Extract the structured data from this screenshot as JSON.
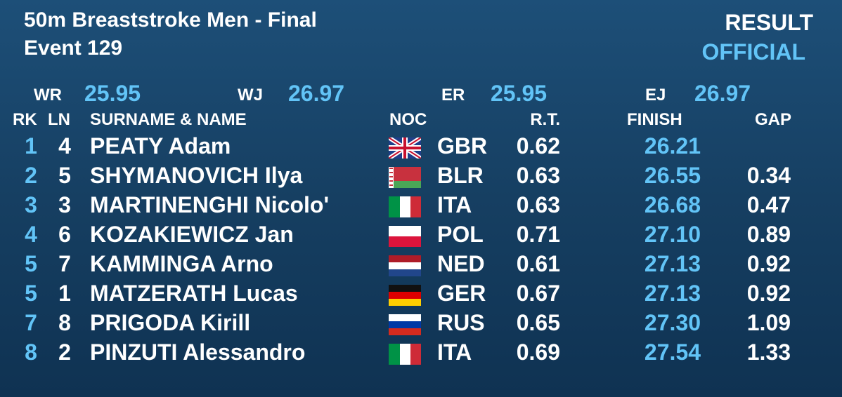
{
  "header": {
    "title": "50m Breaststroke Men - Final",
    "event": "Event 129",
    "status": "RESULT",
    "state": "OFFICIAL"
  },
  "records": [
    {
      "label": "WR",
      "time": "25.95"
    },
    {
      "label": "WJ",
      "time": "26.97"
    },
    {
      "label": "ER",
      "time": "25.95"
    },
    {
      "label": "EJ",
      "time": "26.97"
    }
  ],
  "columns": {
    "rank": "RK",
    "lane": "LN",
    "name": "SURNAME & NAME",
    "noc": "NOC",
    "rt": "R.T.",
    "finish": "FINISH",
    "gap": "GAP"
  },
  "rows": [
    {
      "rank": "1",
      "lane": "4",
      "name": "PEATY Adam",
      "noc": "GBR",
      "rt": "0.62",
      "finish": "26.21"
    },
    {
      "rank": "2",
      "lane": "5",
      "name": "SHYMANOVICH Ilya",
      "noc": "BLR",
      "rt": "0.63",
      "finish": "26.55",
      "gap": "0.34"
    },
    {
      "rank": "3",
      "lane": "3",
      "name": "MARTINENGHI Nicolo'",
      "noc": "ITA",
      "rt": "0.63",
      "finish": "26.68",
      "gap": "0.47"
    },
    {
      "rank": "4",
      "lane": "6",
      "name": "KOZAKIEWICZ Jan",
      "noc": "POL",
      "rt": "0.71",
      "finish": "27.10",
      "gap": "0.89"
    },
    {
      "rank": "5",
      "lane": "7",
      "name": "KAMMINGA Arno",
      "noc": "NED",
      "rt": "0.61",
      "finish": "27.13",
      "gap": "0.92"
    },
    {
      "rank": "5",
      "lane": "1",
      "name": "MATZERATH Lucas",
      "noc": "GER",
      "rt": "0.67",
      "finish": "27.13",
      "gap": "0.92"
    },
    {
      "rank": "7",
      "lane": "8",
      "name": "PRIGODA Kirill",
      "noc": "RUS",
      "rt": "0.65",
      "finish": "27.30",
      "gap": "1.09"
    },
    {
      "rank": "8",
      "lane": "2",
      "name": "PINZUTI Alessandro",
      "noc": "ITA",
      "rt": "0.69",
      "finish": "27.54",
      "gap": "1.33"
    }
  ]
}
